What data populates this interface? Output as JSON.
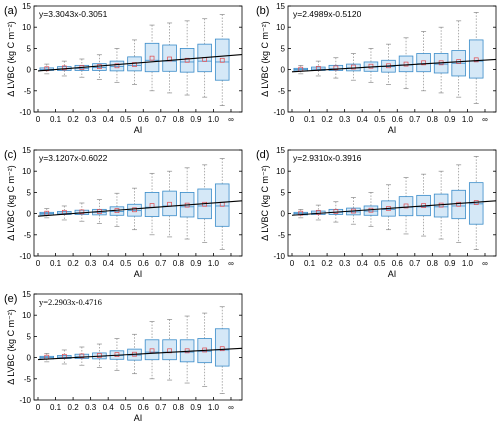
{
  "chart_data": [
    {
      "type": "box",
      "panel_label": "(a)",
      "equation": "y=3.3043x-0.3051",
      "equation_font": "sans",
      "slope": 3.3043,
      "intercept": -0.3051,
      "xlabel": "AI",
      "ylabel": "Δ LVBC (kg C m⁻²)",
      "ylim": [
        -10,
        15
      ],
      "yticks": [
        "-10",
        "-5",
        "0",
        "5",
        "10",
        "15"
      ],
      "xticks": [
        "0",
        "0.1",
        "0.2",
        "0.3",
        "0.4",
        "0.5",
        "0.6",
        "0.7",
        "0.8",
        "0.9",
        "1.0",
        "∞"
      ],
      "boxes": [
        {
          "q1": -0.2,
          "q3": 0.4,
          "median": 0.05,
          "mean": 0.2,
          "whisker_low": -1.0,
          "whisker_high": 1.3
        },
        {
          "q1": -0.2,
          "q3": 0.7,
          "median": 0.2,
          "mean": 0.4,
          "whisker_low": -1.5,
          "whisker_high": 2.0
        },
        {
          "q1": -0.2,
          "q3": 1.0,
          "median": 0.3,
          "mean": 0.5,
          "whisker_low": -1.8,
          "whisker_high": 2.5
        },
        {
          "q1": -0.2,
          "q3": 1.4,
          "median": 0.5,
          "mean": 0.7,
          "whisker_low": -2.3,
          "whisker_high": 3.5
        },
        {
          "q1": -0.3,
          "q3": 2.0,
          "median": 0.7,
          "mean": 0.9,
          "whisker_low": -3.0,
          "whisker_high": 5.0
        },
        {
          "q1": -0.3,
          "q3": 3.0,
          "median": 1.0,
          "mean": 1.2,
          "whisker_low": -3.5,
          "whisker_high": 7.0
        },
        {
          "q1": -0.5,
          "q3": 6.2,
          "median": 2.2,
          "mean": 2.7,
          "whisker_low": -5.0,
          "whisker_high": 10.5
        },
        {
          "q1": -0.4,
          "q3": 5.8,
          "median": 2.0,
          "mean": 2.5,
          "whisker_low": -5.5,
          "whisker_high": 11.0
        },
        {
          "q1": -0.6,
          "q3": 5.0,
          "median": 1.8,
          "mean": 2.2,
          "whisker_low": -6.0,
          "whisker_high": 11.5
        },
        {
          "q1": -0.5,
          "q3": 6.0,
          "median": 2.0,
          "mean": 2.4,
          "whisker_low": -6.5,
          "whisker_high": 12.0
        },
        {
          "q1": -2.5,
          "q3": 7.2,
          "median": 1.8,
          "mean": 2.2,
          "whisker_low": -8.5,
          "whisker_high": 13.0
        }
      ]
    },
    {
      "type": "box",
      "panel_label": "(b)",
      "equation": "y=2.4989x-0.5120",
      "equation_font": "sans",
      "slope": 2.4989,
      "intercept": -0.512,
      "xlabel": "AI",
      "ylabel": "Δ LVBC (kg C m⁻²)",
      "ylim": [
        -10,
        15
      ],
      "yticks": [
        "-10",
        "-5",
        "0",
        "5",
        "10",
        "15"
      ],
      "xticks": [
        "0",
        "0.1",
        "0.2",
        "0.3",
        "0.4",
        "0.5",
        "0.6",
        "0.7",
        "0.8",
        "0.9",
        "1.0",
        "∞"
      ],
      "boxes": [
        {
          "q1": -0.3,
          "q3": 0.3,
          "median": 0.0,
          "mean": 0.1,
          "whisker_low": -1.0,
          "whisker_high": 1.0
        },
        {
          "q1": -0.2,
          "q3": 0.6,
          "median": 0.1,
          "mean": 0.3,
          "whisker_low": -1.5,
          "whisker_high": 2.0
        },
        {
          "q1": -0.2,
          "q3": 1.0,
          "median": 0.2,
          "mean": 0.4,
          "whisker_low": -2.0,
          "whisker_high": 2.8
        },
        {
          "q1": -0.3,
          "q3": 1.3,
          "median": 0.4,
          "mean": 0.6,
          "whisker_low": -2.5,
          "whisker_high": 3.8
        },
        {
          "q1": -0.4,
          "q3": 1.8,
          "median": 0.6,
          "mean": 0.8,
          "whisker_low": -3.0,
          "whisker_high": 5.0
        },
        {
          "q1": -0.6,
          "q3": 2.2,
          "median": 0.7,
          "mean": 0.9,
          "whisker_low": -3.5,
          "whisker_high": 6.0
        },
        {
          "q1": -0.5,
          "q3": 3.2,
          "median": 1.1,
          "mean": 1.3,
          "whisker_low": -4.5,
          "whisker_high": 7.5
        },
        {
          "q1": -0.5,
          "q3": 3.8,
          "median": 1.4,
          "mean": 1.6,
          "whisker_low": -5.0,
          "whisker_high": 9.0
        },
        {
          "q1": -0.8,
          "q3": 3.8,
          "median": 1.3,
          "mean": 1.6,
          "whisker_low": -5.5,
          "whisker_high": 10.0
        },
        {
          "q1": -1.5,
          "q3": 4.5,
          "median": 1.5,
          "mean": 1.9,
          "whisker_low": -6.5,
          "whisker_high": 11.5
        },
        {
          "q1": -2.0,
          "q3": 7.0,
          "median": 2.0,
          "mean": 2.3,
          "whisker_low": -8.0,
          "whisker_high": 13.5
        }
      ]
    },
    {
      "type": "box",
      "panel_label": "(c)",
      "equation": "y=3.1207x-0.6022",
      "equation_font": "sans",
      "slope": 3.1207,
      "intercept": -0.6022,
      "xlabel": "AI",
      "ylabel": "Δ LVBC (kg C m⁻²)",
      "ylim": [
        -10,
        15
      ],
      "yticks": [
        "-10",
        "-5",
        "0",
        "5",
        "10",
        "15"
      ],
      "xticks": [
        "0",
        "0.1",
        "0.2",
        "0.3",
        "0.4",
        "0.5",
        "0.6",
        "0.7",
        "0.8",
        "0.9",
        "1.0",
        "∞"
      ],
      "boxes": [
        {
          "q1": -0.3,
          "q3": 0.3,
          "median": 0.0,
          "mean": 0.1,
          "whisker_low": -1.0,
          "whisker_high": 1.2
        },
        {
          "q1": -0.2,
          "q3": 0.5,
          "median": 0.1,
          "mean": 0.3,
          "whisker_low": -1.5,
          "whisker_high": 1.8
        },
        {
          "q1": -0.2,
          "q3": 0.8,
          "median": 0.2,
          "mean": 0.4,
          "whisker_low": -1.8,
          "whisker_high": 2.5
        },
        {
          "q1": -0.3,
          "q3": 1.0,
          "median": 0.3,
          "mean": 0.5,
          "whisker_low": -2.3,
          "whisker_high": 3.3
        },
        {
          "q1": -0.4,
          "q3": 1.6,
          "median": 0.5,
          "mean": 0.7,
          "whisker_low": -3.0,
          "whisker_high": 4.8
        },
        {
          "q1": -0.6,
          "q3": 2.2,
          "median": 0.7,
          "mean": 0.9,
          "whisker_low": -3.8,
          "whisker_high": 6.0
        },
        {
          "q1": -0.7,
          "q3": 5.0,
          "median": 1.5,
          "mean": 1.9,
          "whisker_low": -5.0,
          "whisker_high": 9.5
        },
        {
          "q1": -0.5,
          "q3": 5.3,
          "median": 1.8,
          "mean": 2.2,
          "whisker_low": -5.5,
          "whisker_high": 10.0
        },
        {
          "q1": -0.8,
          "q3": 5.0,
          "median": 1.6,
          "mean": 2.0,
          "whisker_low": -6.0,
          "whisker_high": 10.8
        },
        {
          "q1": -1.2,
          "q3": 5.8,
          "median": 1.8,
          "mean": 2.2,
          "whisker_low": -6.8,
          "whisker_high": 11.5
        },
        {
          "q1": -3.0,
          "q3": 7.0,
          "median": 1.8,
          "mean": 2.2,
          "whisker_low": -8.5,
          "whisker_high": 13.0
        }
      ]
    },
    {
      "type": "box",
      "panel_label": "(d)",
      "equation": "y=2.9310x-0.3916",
      "equation_font": "sans",
      "slope": 2.931,
      "intercept": -0.3916,
      "xlabel": "AI",
      "ylabel": "Δ LVBC (kg C m⁻²)",
      "ylim": [
        -10,
        15
      ],
      "yticks": [
        "-10",
        "-5",
        "0",
        "5",
        "10",
        "15"
      ],
      "xticks": [
        "0",
        "0.1",
        "0.2",
        "0.3",
        "0.4",
        "0.5",
        "0.6",
        "0.7",
        "0.8",
        "0.9",
        "1.0",
        "∞"
      ],
      "boxes": [
        {
          "q1": -0.3,
          "q3": 0.3,
          "median": 0.0,
          "mean": 0.1,
          "whisker_low": -1.0,
          "whisker_high": 1.0
        },
        {
          "q1": -0.2,
          "q3": 0.6,
          "median": 0.1,
          "mean": 0.3,
          "whisker_low": -1.5,
          "whisker_high": 2.0
        },
        {
          "q1": -0.2,
          "q3": 1.0,
          "median": 0.3,
          "mean": 0.5,
          "whisker_low": -2.0,
          "whisker_high": 2.8
        },
        {
          "q1": -0.3,
          "q3": 1.3,
          "median": 0.4,
          "mean": 0.6,
          "whisker_low": -2.5,
          "whisker_high": 3.8
        },
        {
          "q1": -0.4,
          "q3": 1.8,
          "median": 0.6,
          "mean": 0.8,
          "whisker_low": -3.0,
          "whisker_high": 5.0
        },
        {
          "q1": -0.6,
          "q3": 3.0,
          "median": 1.0,
          "mean": 1.2,
          "whisker_low": -3.8,
          "whisker_high": 6.8
        },
        {
          "q1": -0.5,
          "q3": 4.0,
          "median": 1.5,
          "mean": 1.8,
          "whisker_low": -4.8,
          "whisker_high": 8.5
        },
        {
          "q1": -0.5,
          "q3": 4.3,
          "median": 1.6,
          "mean": 1.9,
          "whisker_low": -5.3,
          "whisker_high": 9.3
        },
        {
          "q1": -0.8,
          "q3": 4.6,
          "median": 1.6,
          "mean": 2.0,
          "whisker_low": -6.0,
          "whisker_high": 10.0
        },
        {
          "q1": -1.2,
          "q3": 5.5,
          "median": 1.8,
          "mean": 2.2,
          "whisker_low": -6.8,
          "whisker_high": 11.5
        },
        {
          "q1": -2.5,
          "q3": 7.3,
          "median": 2.3,
          "mean": 2.6,
          "whisker_low": -8.5,
          "whisker_high": 13.5
        }
      ]
    },
    {
      "type": "box",
      "panel_label": "(e)",
      "equation": "y=2.2903x-0.4716",
      "equation_font": "serif",
      "slope": 2.2903,
      "intercept": -0.4716,
      "xlabel": "AI",
      "ylabel": "Δ LVBC (kg C m⁻²)",
      "ylim": [
        -10,
        15
      ],
      "yticks": [
        "-10",
        "-5",
        "0",
        "5",
        "10",
        "15"
      ],
      "xticks": [
        "0",
        "0.1",
        "0.2",
        "0.3",
        "0.4",
        "0.5",
        "0.6",
        "0.7",
        "0.8",
        "0.9",
        "1.0",
        "∞"
      ],
      "boxes": [
        {
          "q1": -0.3,
          "q3": 0.3,
          "median": 0.0,
          "mean": 0.1,
          "whisker_low": -1.0,
          "whisker_high": 1.0
        },
        {
          "q1": -0.2,
          "q3": 0.5,
          "median": 0.1,
          "mean": 0.3,
          "whisker_low": -1.5,
          "whisker_high": 1.8
        },
        {
          "q1": -0.2,
          "q3": 0.8,
          "median": 0.2,
          "mean": 0.4,
          "whisker_low": -1.8,
          "whisker_high": 2.5
        },
        {
          "q1": -0.3,
          "q3": 1.1,
          "median": 0.3,
          "mean": 0.5,
          "whisker_low": -2.3,
          "whisker_high": 3.2
        },
        {
          "q1": -0.4,
          "q3": 1.6,
          "median": 0.5,
          "mean": 0.7,
          "whisker_low": -3.0,
          "whisker_high": 4.5
        },
        {
          "q1": -0.6,
          "q3": 2.0,
          "median": 0.6,
          "mean": 0.8,
          "whisker_low": -3.8,
          "whisker_high": 5.5
        },
        {
          "q1": -0.5,
          "q3": 4.2,
          "median": 1.3,
          "mean": 1.6,
          "whisker_low": -5.0,
          "whisker_high": 8.5
        },
        {
          "q1": -0.5,
          "q3": 4.2,
          "median": 1.3,
          "mean": 1.6,
          "whisker_low": -5.3,
          "whisker_high": 9.0
        },
        {
          "q1": -1.0,
          "q3": 4.2,
          "median": 1.3,
          "mean": 1.6,
          "whisker_low": -6.0,
          "whisker_high": 9.8
        },
        {
          "q1": -1.2,
          "q3": 4.5,
          "median": 1.5,
          "mean": 1.8,
          "whisker_low": -6.8,
          "whisker_high": 10.5
        },
        {
          "q1": -2.0,
          "q3": 6.8,
          "median": 1.8,
          "mean": 2.1,
          "whisker_low": -8.5,
          "whisker_high": 12.0
        }
      ]
    }
  ],
  "colors": {
    "box_fill": "#d5e8f7",
    "box_stroke": "#3a8cc9",
    "median": "#3a8cc9",
    "mean_marker": "#e0474c",
    "whisker": "#8a8a8a",
    "trend_line": "#000000",
    "axis": "#000000"
  }
}
